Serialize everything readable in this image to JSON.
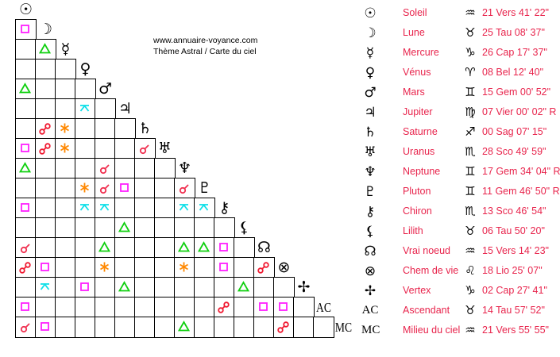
{
  "site": {
    "url": "www.annuaire-voyance.com",
    "subtitle": "Thème Astral / Carte du ciel"
  },
  "colors": {
    "text_accent": "#e8244c",
    "conjunction": "#f03050",
    "opposition": "#f01830",
    "trine": "#10d010",
    "square": "#ff20ff",
    "sextile": "#ff8800",
    "quincunx": "#10e0e8"
  },
  "planets": [
    {
      "icon": "sun-icon",
      "symbol": "☉",
      "name": "Soleil",
      "sign_icon": "aquarius-icon",
      "sign_symbol": "♒",
      "position": "21 Vers 41' 22\""
    },
    {
      "icon": "moon-icon",
      "symbol": "☽",
      "name": "Lune",
      "sign_icon": "taurus-icon",
      "sign_symbol": "♉",
      "position": "25 Tau 08' 37\""
    },
    {
      "icon": "mercury-icon",
      "symbol": "☿",
      "name": "Mercure",
      "sign_icon": "capricorn-icon",
      "sign_symbol": "♑",
      "position": "26 Cap 17' 37\""
    },
    {
      "icon": "venus-icon",
      "symbol": "♀",
      "name": "Vénus",
      "sign_icon": "aries-icon",
      "sign_symbol": "♈",
      "position": "08 Bel 12' 40\""
    },
    {
      "icon": "mars-icon",
      "symbol": "♂",
      "name": "Mars",
      "sign_icon": "gemini-icon",
      "sign_symbol": "♊",
      "position": "15 Gem 00' 52\""
    },
    {
      "icon": "jupiter-icon",
      "symbol": "♃",
      "name": "Jupiter",
      "sign_icon": "virgo-icon",
      "sign_symbol": "♍",
      "position": "07 Vier 00' 02\" R"
    },
    {
      "icon": "saturn-icon",
      "symbol": "♄",
      "name": "Saturne",
      "sign_icon": "sagittarius-icon",
      "sign_symbol": "♐",
      "position": "00 Sag 07' 15\""
    },
    {
      "icon": "uranus-icon",
      "symbol": "♅",
      "name": "Uranus",
      "sign_icon": "scorpio-icon",
      "sign_symbol": "♏",
      "position": "28 Sco 49' 59\""
    },
    {
      "icon": "neptune-icon",
      "symbol": "♆",
      "name": "Neptune",
      "sign_icon": "gemini-icon",
      "sign_symbol": "♊",
      "position": "17 Gem 34' 04\" R"
    },
    {
      "icon": "pluto-icon",
      "symbol": "♇",
      "name": "Pluton",
      "sign_icon": "gemini-icon",
      "sign_symbol": "♊",
      "position": "11 Gem 46' 50\" R"
    },
    {
      "icon": "chiron-icon",
      "symbol": "⚷",
      "name": "Chiron",
      "sign_icon": "scorpio-icon",
      "sign_symbol": "♏",
      "position": "13 Sco 46' 54\""
    },
    {
      "icon": "lilith-icon",
      "symbol": "⚸",
      "name": "Lilith",
      "sign_icon": "taurus-icon",
      "sign_symbol": "♉",
      "position": "06 Tau 50' 20\""
    },
    {
      "icon": "north-node-icon",
      "symbol": "☊",
      "name": "Vrai noeud",
      "sign_icon": "aquarius-icon",
      "sign_symbol": "♒",
      "position": "15 Vers 14' 23\""
    },
    {
      "icon": "part-of-fortune-icon",
      "symbol": "⊗",
      "name": "Chem de vie",
      "sign_icon": "leo-icon",
      "sign_symbol": "♌",
      "position": "18 Lio 25' 07\""
    },
    {
      "icon": "vertex-icon",
      "symbol": "✢",
      "name": "Vertex",
      "sign_icon": "capricorn-icon",
      "sign_symbol": "♑",
      "position": "02 Cap 27' 41\""
    },
    {
      "icon": "ascendant-icon",
      "symbol": "AC",
      "name": "Ascendant",
      "sign_icon": "taurus-icon",
      "sign_symbol": "♉",
      "position": "14 Tau 57' 52\""
    },
    {
      "icon": "midheaven-icon",
      "symbol": "MC",
      "name": "Milieu du ciel",
      "sign_icon": "aquarius-icon",
      "sign_symbol": "♒",
      "position": "21 Vers 55' 55\""
    }
  ],
  "aspects": [
    {
      "a": 1,
      "b": 0,
      "type": "square"
    },
    {
      "a": 2,
      "b": 1,
      "type": "trine"
    },
    {
      "a": 4,
      "b": 0,
      "type": "trine"
    },
    {
      "a": 5,
      "b": 3,
      "type": "quincunx"
    },
    {
      "a": 6,
      "b": 1,
      "type": "opposition"
    },
    {
      "a": 6,
      "b": 2,
      "type": "sextile"
    },
    {
      "a": 7,
      "b": 0,
      "type": "square"
    },
    {
      "a": 7,
      "b": 1,
      "type": "opposition"
    },
    {
      "a": 7,
      "b": 2,
      "type": "sextile"
    },
    {
      "a": 7,
      "b": 6,
      "type": "conjunction"
    },
    {
      "a": 8,
      "b": 0,
      "type": "trine"
    },
    {
      "a": 8,
      "b": 4,
      "type": "conjunction"
    },
    {
      "a": 9,
      "b": 3,
      "type": "sextile"
    },
    {
      "a": 9,
      "b": 4,
      "type": "conjunction"
    },
    {
      "a": 9,
      "b": 5,
      "type": "square"
    },
    {
      "a": 9,
      "b": 8,
      "type": "conjunction"
    },
    {
      "a": 10,
      "b": 0,
      "type": "square"
    },
    {
      "a": 10,
      "b": 3,
      "type": "quincunx"
    },
    {
      "a": 10,
      "b": 4,
      "type": "quincunx"
    },
    {
      "a": 10,
      "b": 8,
      "type": "quincunx"
    },
    {
      "a": 10,
      "b": 9,
      "type": "quincunx"
    },
    {
      "a": 11,
      "b": 5,
      "type": "trine"
    },
    {
      "a": 12,
      "b": 0,
      "type": "conjunction"
    },
    {
      "a": 12,
      "b": 4,
      "type": "trine"
    },
    {
      "a": 12,
      "b": 8,
      "type": "trine"
    },
    {
      "a": 12,
      "b": 9,
      "type": "trine"
    },
    {
      "a": 12,
      "b": 10,
      "type": "square"
    },
    {
      "a": 13,
      "b": 0,
      "type": "opposition"
    },
    {
      "a": 13,
      "b": 1,
      "type": "square"
    },
    {
      "a": 13,
      "b": 4,
      "type": "sextile"
    },
    {
      "a": 13,
      "b": 8,
      "type": "sextile"
    },
    {
      "a": 13,
      "b": 10,
      "type": "square"
    },
    {
      "a": 13,
      "b": 12,
      "type": "opposition"
    },
    {
      "a": 14,
      "b": 1,
      "type": "quincunx"
    },
    {
      "a": 14,
      "b": 3,
      "type": "square"
    },
    {
      "a": 14,
      "b": 5,
      "type": "trine"
    },
    {
      "a": 14,
      "b": 11,
      "type": "trine"
    },
    {
      "a": 15,
      "b": 0,
      "type": "square"
    },
    {
      "a": 15,
      "b": 10,
      "type": "opposition"
    },
    {
      "a": 15,
      "b": 12,
      "type": "square"
    },
    {
      "a": 15,
      "b": 13,
      "type": "square"
    },
    {
      "a": 16,
      "b": 0,
      "type": "conjunction"
    },
    {
      "a": 16,
      "b": 1,
      "type": "square"
    },
    {
      "a": 16,
      "b": 8,
      "type": "trine"
    },
    {
      "a": 16,
      "b": 13,
      "type": "opposition"
    }
  ]
}
